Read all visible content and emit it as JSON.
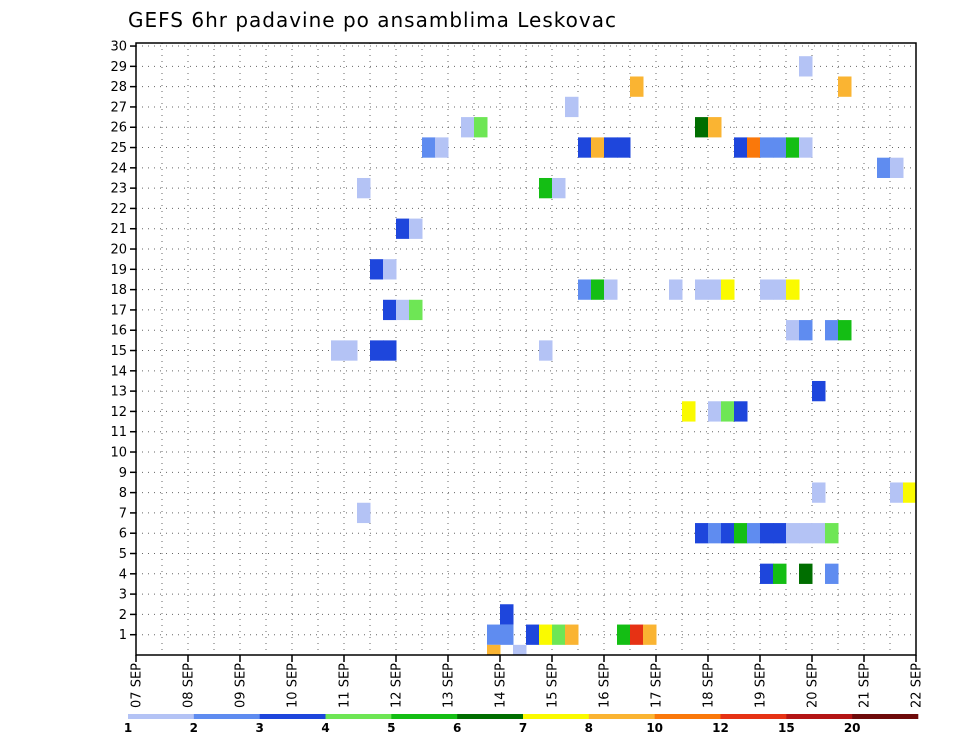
{
  "chart_data": {
    "type": "heatmap",
    "title": "GEFS 6hr padavine po ansamblima Leskovac",
    "xlabel": "",
    "ylabel": "",
    "x_tick_labels": [
      "07 SEP",
      "08 SEP",
      "09 SEP",
      "10 SEP",
      "11 SEP",
      "12 SEP",
      "13 SEP",
      "14 SEP",
      "15 SEP",
      "16 SEP",
      "17 SEP",
      "18 SEP",
      "19 SEP",
      "20 SEP",
      "21 SEP",
      "22 SEP"
    ],
    "x_range_days": [
      7,
      22
    ],
    "steps_per_day": 4,
    "y_range": [
      0,
      30
    ],
    "y_ticks": [
      1,
      2,
      3,
      4,
      5,
      6,
      7,
      8,
      9,
      10,
      11,
      12,
      13,
      14,
      15,
      16,
      17,
      18,
      19,
      20,
      21,
      22,
      23,
      24,
      25,
      26,
      27,
      28,
      29,
      30
    ],
    "grid": true,
    "legend_placement": "bottom",
    "legend": {
      "thresholds": [
        "1",
        "2",
        "3",
        "4",
        "5",
        "6",
        "7",
        "8",
        "10",
        "12",
        "15",
        "20"
      ],
      "colors": [
        "#b4c3f5",
        "#5f8cf0",
        "#1e46dc",
        "#6ee655",
        "#14be14",
        "#006e00",
        "#fafa00",
        "#fab432",
        "#fa780a",
        "#e63214",
        "#b41414",
        "#6e0a0a"
      ]
    },
    "cells": [
      {
        "member": 29,
        "day": 19.75,
        "cls": 0
      },
      {
        "member": 28,
        "day": 16.5,
        "cls": 7
      },
      {
        "member": 28,
        "day": 20.5,
        "cls": 7
      },
      {
        "member": 27,
        "day": 15.25,
        "cls": 0
      },
      {
        "member": 26,
        "day": 13.25,
        "cls": 0
      },
      {
        "member": 26,
        "day": 13.5,
        "cls": 3
      },
      {
        "member": 26,
        "day": 17.75,
        "cls": 5
      },
      {
        "member": 26,
        "day": 18.0,
        "cls": 7
      },
      {
        "member": 25,
        "day": 12.5,
        "cls": 1
      },
      {
        "member": 25,
        "day": 12.75,
        "cls": 0
      },
      {
        "member": 25,
        "day": 15.5,
        "cls": 2
      },
      {
        "member": 25,
        "day": 15.75,
        "cls": 7
      },
      {
        "member": 25,
        "day": 16.0,
        "cls": 2
      },
      {
        "member": 25,
        "day": 16.25,
        "cls": 2
      },
      {
        "member": 25,
        "day": 18.5,
        "cls": 2
      },
      {
        "member": 25,
        "day": 18.75,
        "cls": 8
      },
      {
        "member": 25,
        "day": 19.0,
        "cls": 1
      },
      {
        "member": 25,
        "day": 19.25,
        "cls": 1
      },
      {
        "member": 25,
        "day": 19.5,
        "cls": 4
      },
      {
        "member": 25,
        "day": 19.75,
        "cls": 0
      },
      {
        "member": 24,
        "day": 21.25,
        "cls": 1
      },
      {
        "member": 24,
        "day": 21.5,
        "cls": 0
      },
      {
        "member": 23,
        "day": 11.25,
        "cls": 0
      },
      {
        "member": 23,
        "day": 14.75,
        "cls": 4
      },
      {
        "member": 23,
        "day": 15.0,
        "cls": 0
      },
      {
        "member": 21,
        "day": 12.0,
        "cls": 2
      },
      {
        "member": 21,
        "day": 12.25,
        "cls": 0
      },
      {
        "member": 19,
        "day": 11.5,
        "cls": 2
      },
      {
        "member": 19,
        "day": 11.75,
        "cls": 0
      },
      {
        "member": 18,
        "day": 15.5,
        "cls": 1
      },
      {
        "member": 18,
        "day": 15.75,
        "cls": 4
      },
      {
        "member": 18,
        "day": 16.0,
        "cls": 0
      },
      {
        "member": 18,
        "day": 17.25,
        "cls": 0
      },
      {
        "member": 18,
        "day": 17.75,
        "cls": 0
      },
      {
        "member": 18,
        "day": 18.0,
        "cls": 0
      },
      {
        "member": 18,
        "day": 18.25,
        "cls": 6
      },
      {
        "member": 18,
        "day": 19.0,
        "cls": 0
      },
      {
        "member": 18,
        "day": 19.25,
        "cls": 0
      },
      {
        "member": 18,
        "day": 19.5,
        "cls": 6
      },
      {
        "member": 17,
        "day": 11.75,
        "cls": 2
      },
      {
        "member": 17,
        "day": 12.0,
        "cls": 0
      },
      {
        "member": 17,
        "day": 12.25,
        "cls": 3
      },
      {
        "member": 16,
        "day": 19.5,
        "cls": 0
      },
      {
        "member": 16,
        "day": 19.75,
        "cls": 1
      },
      {
        "member": 16,
        "day": 20.25,
        "cls": 1
      },
      {
        "member": 16,
        "day": 20.5,
        "cls": 4
      },
      {
        "member": 15,
        "day": 10.75,
        "cls": 0
      },
      {
        "member": 15,
        "day": 11.0,
        "cls": 0
      },
      {
        "member": 15,
        "day": 11.5,
        "cls": 2
      },
      {
        "member": 15,
        "day": 11.75,
        "cls": 2
      },
      {
        "member": 15,
        "day": 14.75,
        "cls": 0
      },
      {
        "member": 13,
        "day": 20.0,
        "cls": 2
      },
      {
        "member": 12,
        "day": 17.5,
        "cls": 6
      },
      {
        "member": 12,
        "day": 18.0,
        "cls": 0
      },
      {
        "member": 12,
        "day": 18.25,
        "cls": 3
      },
      {
        "member": 12,
        "day": 18.5,
        "cls": 2
      },
      {
        "member": 8,
        "day": 20.0,
        "cls": 0
      },
      {
        "member": 8,
        "day": 21.5,
        "cls": 0
      },
      {
        "member": 8,
        "day": 21.75,
        "cls": 6
      },
      {
        "member": 7,
        "day": 11.25,
        "cls": 0
      },
      {
        "member": 6,
        "day": 17.75,
        "cls": 2
      },
      {
        "member": 6,
        "day": 18.0,
        "cls": 1
      },
      {
        "member": 6,
        "day": 18.25,
        "cls": 2
      },
      {
        "member": 6,
        "day": 18.5,
        "cls": 4
      },
      {
        "member": 6,
        "day": 18.75,
        "cls": 1
      },
      {
        "member": 6,
        "day": 19.0,
        "cls": 2
      },
      {
        "member": 6,
        "day": 19.25,
        "cls": 2
      },
      {
        "member": 6,
        "day": 19.5,
        "cls": 0
      },
      {
        "member": 6,
        "day": 19.75,
        "cls": 0
      },
      {
        "member": 6,
        "day": 20.0,
        "cls": 0
      },
      {
        "member": 6,
        "day": 20.25,
        "cls": 3
      },
      {
        "member": 4,
        "day": 19.0,
        "cls": 2
      },
      {
        "member": 4,
        "day": 19.25,
        "cls": 4
      },
      {
        "member": 4,
        "day": 19.75,
        "cls": 5
      },
      {
        "member": 4,
        "day": 20.25,
        "cls": 1
      },
      {
        "member": 2,
        "day": 14.0,
        "cls": 2
      },
      {
        "member": 1,
        "day": 13.75,
        "cls": 1
      },
      {
        "member": 1,
        "day": 14.0,
        "cls": 1
      },
      {
        "member": 1,
        "day": 14.5,
        "cls": 2
      },
      {
        "member": 1,
        "day": 14.75,
        "cls": 6
      },
      {
        "member": 1,
        "day": 15.0,
        "cls": 3
      },
      {
        "member": 1,
        "day": 15.25,
        "cls": 7
      },
      {
        "member": 1,
        "day": 16.25,
        "cls": 4
      },
      {
        "member": 1,
        "day": 16.5,
        "cls": 9
      },
      {
        "member": 1,
        "day": 16.75,
        "cls": 7
      },
      {
        "member": 0,
        "day": 13.75,
        "cls": 7
      },
      {
        "member": 0,
        "day": 14.25,
        "cls": 0
      }
    ]
  }
}
